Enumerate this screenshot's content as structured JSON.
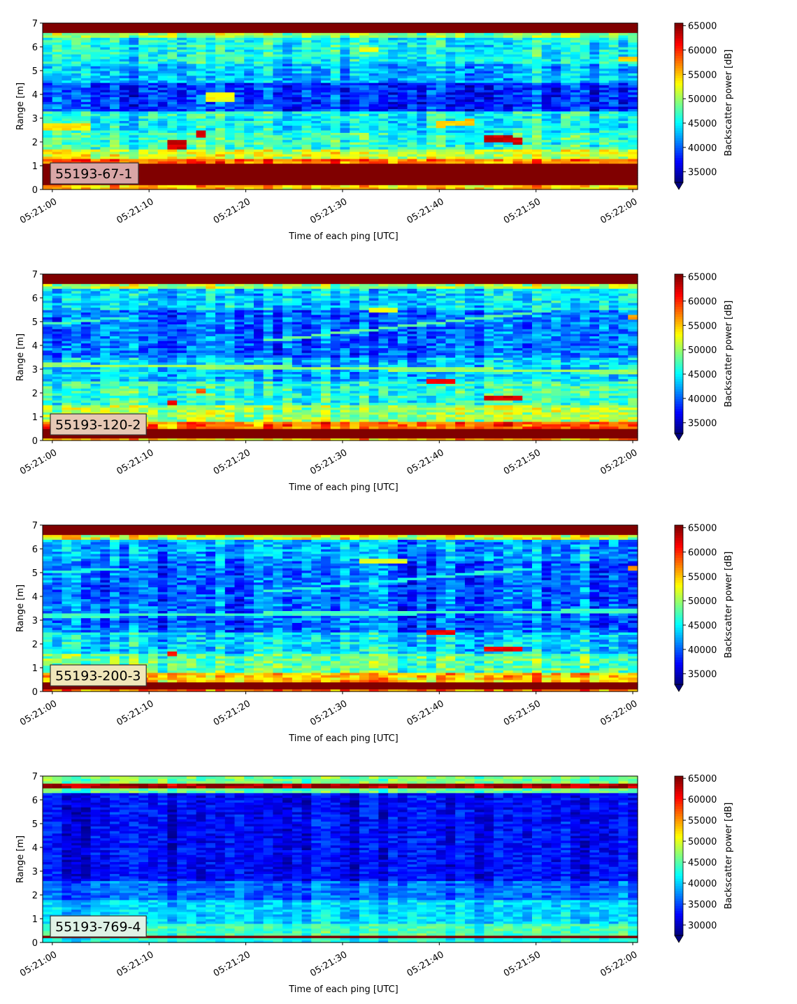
{
  "chart_data": [
    {
      "type": "heatmap",
      "label_box": "55193-67-1",
      "label_box_color": "#d9a6a6",
      "xlabel": "Time of each ping [UTC]",
      "ylabel": "Range [m]",
      "x_ticks": [
        "05:21:00",
        "05:21:10",
        "05:21:20",
        "05:21:30",
        "05:21:40",
        "05:21:50",
        "05:22:00"
      ],
      "y_ticks": [
        0,
        1,
        2,
        3,
        4,
        5,
        6,
        7
      ],
      "xlim_seconds": [
        -1,
        60.5
      ],
      "ylim": [
        0,
        7
      ],
      "colorbar_label": "Backscatter power [dB]",
      "colorbar_ticks": [
        35000,
        40000,
        45000,
        50000,
        55000,
        60000,
        65000
      ],
      "clim": [
        32800,
        65535
      ],
      "colormap": "jet",
      "background_level": 44000,
      "layers": [
        {
          "from": 0.0,
          "to": 0.25,
          "value": 55000
        },
        {
          "from": 0.25,
          "to": 1.1,
          "value": 65535
        },
        {
          "from": 1.1,
          "to": 1.3,
          "value": 58000
        },
        {
          "from": 1.3,
          "to": 1.7,
          "value": 52000
        },
        {
          "from": 1.7,
          "to": 2.4,
          "value": 47000
        },
        {
          "from": 2.4,
          "to": 3.0,
          "value": 45000
        },
        {
          "from": 3.0,
          "to": 3.3,
          "value": 46000
        },
        {
          "from": 3.3,
          "to": 4.5,
          "value": 38500
        },
        {
          "from": 4.5,
          "to": 5.3,
          "value": 43000
        },
        {
          "from": 5.3,
          "to": 6.4,
          "value": 45500
        },
        {
          "from": 6.4,
          "to": 6.6,
          "value": 50000
        },
        {
          "from": 6.6,
          "to": 7.0,
          "value": 65535
        }
      ],
      "features": [
        {
          "t": [
            -1,
            4
          ],
          "y": [
            2.65,
            2.65
          ],
          "w": 0.25,
          "value": 54000
        },
        {
          "t": [
            11.5,
            14
          ],
          "y": [
            1.9,
            1.9
          ],
          "w": 0.3,
          "value": 63000
        },
        {
          "t": [
            14.5,
            16
          ],
          "y": [
            2.35,
            2.35
          ],
          "w": 0.3,
          "value": 62000
        },
        {
          "t": [
            16,
            18.5
          ],
          "y": [
            3.9,
            3.9
          ],
          "w": 0.3,
          "value": 53000
        },
        {
          "t": [
            39.5,
            44
          ],
          "y": [
            2.75,
            2.85
          ],
          "w": 0.25,
          "value": 55000
        },
        {
          "t": [
            44.5,
            48.5
          ],
          "y": [
            2.2,
            2.05
          ],
          "w": 0.3,
          "value": 63000
        },
        {
          "t": [
            32,
            34
          ],
          "y": [
            5.9,
            5.9
          ],
          "w": 0.2,
          "value": 53000
        },
        {
          "t": [
            58.5,
            60.5
          ],
          "y": [
            5.5,
            5.5
          ],
          "w": 0.2,
          "value": 55000
        }
      ],
      "noise": 6000
    },
    {
      "type": "heatmap",
      "label_box": "55193-120-2",
      "label_box_color": "#e6c8b4",
      "xlabel": "Time of each ping [UTC]",
      "ylabel": "Range [m]",
      "x_ticks": [
        "05:21:00",
        "05:21:10",
        "05:21:20",
        "05:21:30",
        "05:21:40",
        "05:21:50",
        "05:22:00"
      ],
      "y_ticks": [
        0,
        1,
        2,
        3,
        4,
        5,
        6,
        7
      ],
      "xlim_seconds": [
        -1,
        60.5
      ],
      "ylim": [
        0,
        7
      ],
      "colorbar_label": "Backscatter power [dB]",
      "colorbar_ticks": [
        35000,
        40000,
        45000,
        50000,
        55000,
        60000,
        65000
      ],
      "clim": [
        32800,
        65535
      ],
      "colormap": "jet",
      "background_level": 43000,
      "layers": [
        {
          "from": 0.0,
          "to": 0.1,
          "value": 55000
        },
        {
          "from": 0.1,
          "to": 0.5,
          "value": 65535
        },
        {
          "from": 0.5,
          "to": 0.8,
          "value": 58000
        },
        {
          "from": 0.8,
          "to": 1.5,
          "value": 50000
        },
        {
          "from": 1.5,
          "to": 2.5,
          "value": 46000
        },
        {
          "from": 2.5,
          "to": 3.5,
          "value": 43000
        },
        {
          "from": 3.5,
          "to": 5.5,
          "value": 40000
        },
        {
          "from": 5.5,
          "to": 6.4,
          "value": 43500
        },
        {
          "from": 6.4,
          "to": 6.6,
          "value": 50000
        },
        {
          "from": 6.6,
          "to": 7.0,
          "value": 65535
        }
      ],
      "features": [
        {
          "t": [
            -1,
            60.5
          ],
          "y": [
            3.2,
            2.9
          ],
          "w": 0.15,
          "value": 50000
        },
        {
          "t": [
            22,
            52
          ],
          "y": [
            4.2,
            5.5
          ],
          "w": 0.12,
          "value": 48000
        },
        {
          "t": [
            -1,
            8
          ],
          "y": [
            4.9,
            5.2
          ],
          "w": 0.12,
          "value": 47000
        },
        {
          "t": [
            11.5,
            13
          ],
          "y": [
            1.65,
            1.65
          ],
          "w": 0.2,
          "value": 62000
        },
        {
          "t": [
            14.5,
            15.5
          ],
          "y": [
            2.1,
            2.1
          ],
          "w": 0.2,
          "value": 58000
        },
        {
          "t": [
            38.5,
            42
          ],
          "y": [
            2.5,
            2.55
          ],
          "w": 0.2,
          "value": 62000
        },
        {
          "t": [
            45,
            48.5
          ],
          "y": [
            1.85,
            1.75
          ],
          "w": 0.2,
          "value": 63000
        },
        {
          "t": [
            33,
            36
          ],
          "y": [
            5.5,
            5.5
          ],
          "w": 0.12,
          "value": 53000
        },
        {
          "t": [
            59.5,
            60.5
          ],
          "y": [
            5.2,
            5.2
          ],
          "w": 0.15,
          "value": 56000
        }
      ],
      "noise": 6500
    },
    {
      "type": "heatmap",
      "label_box": "55193-200-3",
      "label_box_color": "#f0e6b9",
      "xlabel": "Time of each ping [UTC]",
      "ylabel": "Range [m]",
      "x_ticks": [
        "05:21:00",
        "05:21:10",
        "05:21:20",
        "05:21:30",
        "05:21:40",
        "05:21:50",
        "05:22:00"
      ],
      "y_ticks": [
        0,
        1,
        2,
        3,
        4,
        5,
        6,
        7
      ],
      "xlim_seconds": [
        -1,
        60.5
      ],
      "ylim": [
        0,
        7
      ],
      "colorbar_label": "Backscatter power [dB]",
      "colorbar_ticks": [
        35000,
        40000,
        45000,
        50000,
        55000,
        60000,
        65000
      ],
      "clim": [
        32800,
        65535
      ],
      "colormap": "jet",
      "background_level": 42000,
      "layers": [
        {
          "from": 0.0,
          "to": 0.1,
          "value": 57000
        },
        {
          "from": 0.1,
          "to": 0.4,
          "value": 65535
        },
        {
          "from": 0.4,
          "to": 0.8,
          "value": 55000
        },
        {
          "from": 0.8,
          "to": 1.6,
          "value": 48000
        },
        {
          "from": 1.6,
          "to": 2.5,
          "value": 44000
        },
        {
          "from": 2.5,
          "to": 5.5,
          "value": 40000
        },
        {
          "from": 5.5,
          "to": 6.4,
          "value": 42000
        },
        {
          "from": 6.4,
          "to": 6.6,
          "value": 52000
        },
        {
          "from": 6.6,
          "to": 7.0,
          "value": 65535
        }
      ],
      "features": [
        {
          "t": [
            -1,
            60.5
          ],
          "y": [
            3.2,
            3.4
          ],
          "w": 0.15,
          "value": 47000
        },
        {
          "t": [
            22,
            50
          ],
          "y": [
            4.2,
            5.2
          ],
          "w": 0.12,
          "value": 46000
        },
        {
          "t": [
            -1,
            8
          ],
          "y": [
            5.0,
            5.2
          ],
          "w": 0.12,
          "value": 46000
        },
        {
          "t": [
            12,
            13
          ],
          "y": [
            1.65,
            1.65
          ],
          "w": 0.2,
          "value": 60000
        },
        {
          "t": [
            38.5,
            42
          ],
          "y": [
            2.45,
            2.5
          ],
          "w": 0.2,
          "value": 62000
        },
        {
          "t": [
            45,
            48.5
          ],
          "y": [
            1.85,
            1.75
          ],
          "w": 0.2,
          "value": 62000
        },
        {
          "t": [
            32,
            37
          ],
          "y": [
            5.5,
            5.5
          ],
          "w": 0.12,
          "value": 52000
        },
        {
          "t": [
            59.5,
            60.5
          ],
          "y": [
            5.2,
            5.2
          ],
          "w": 0.15,
          "value": 56000
        }
      ],
      "noise": 6500
    },
    {
      "type": "heatmap",
      "label_box": "55193-769-4",
      "label_box_color": "#dff2e6",
      "xlabel": "Time of each ping [UTC]",
      "ylabel": "Range [m]",
      "x_ticks": [
        "05:21:00",
        "05:21:10",
        "05:21:20",
        "05:21:30",
        "05:21:40",
        "05:21:50",
        "05:22:00"
      ],
      "y_ticks": [
        0,
        1,
        2,
        3,
        4,
        5,
        6,
        7
      ],
      "xlim_seconds": [
        -1,
        60.5
      ],
      "ylim": [
        0,
        7
      ],
      "colorbar_label": "Backscatter power [dB]",
      "colorbar_ticks": [
        30000,
        35000,
        40000,
        45000,
        50000,
        55000,
        60000,
        65000
      ],
      "clim": [
        27500,
        65535
      ],
      "colormap": "jet",
      "background_level": 33000,
      "layers": [
        {
          "from": 0.0,
          "to": 0.2,
          "value": 42000
        },
        {
          "from": 0.2,
          "to": 0.35,
          "value": 65535
        },
        {
          "from": 0.35,
          "to": 0.8,
          "value": 44000
        },
        {
          "from": 0.8,
          "to": 1.8,
          "value": 40000
        },
        {
          "from": 1.8,
          "to": 2.6,
          "value": 36000
        },
        {
          "from": 2.6,
          "to": 6.3,
          "value": 32000
        },
        {
          "from": 6.3,
          "to": 6.5,
          "value": 45000
        },
        {
          "from": 6.5,
          "to": 6.75,
          "value": 64000
        },
        {
          "from": 6.75,
          "to": 7.0,
          "value": 46000
        }
      ],
      "features": [],
      "noise": 5000
    }
  ]
}
